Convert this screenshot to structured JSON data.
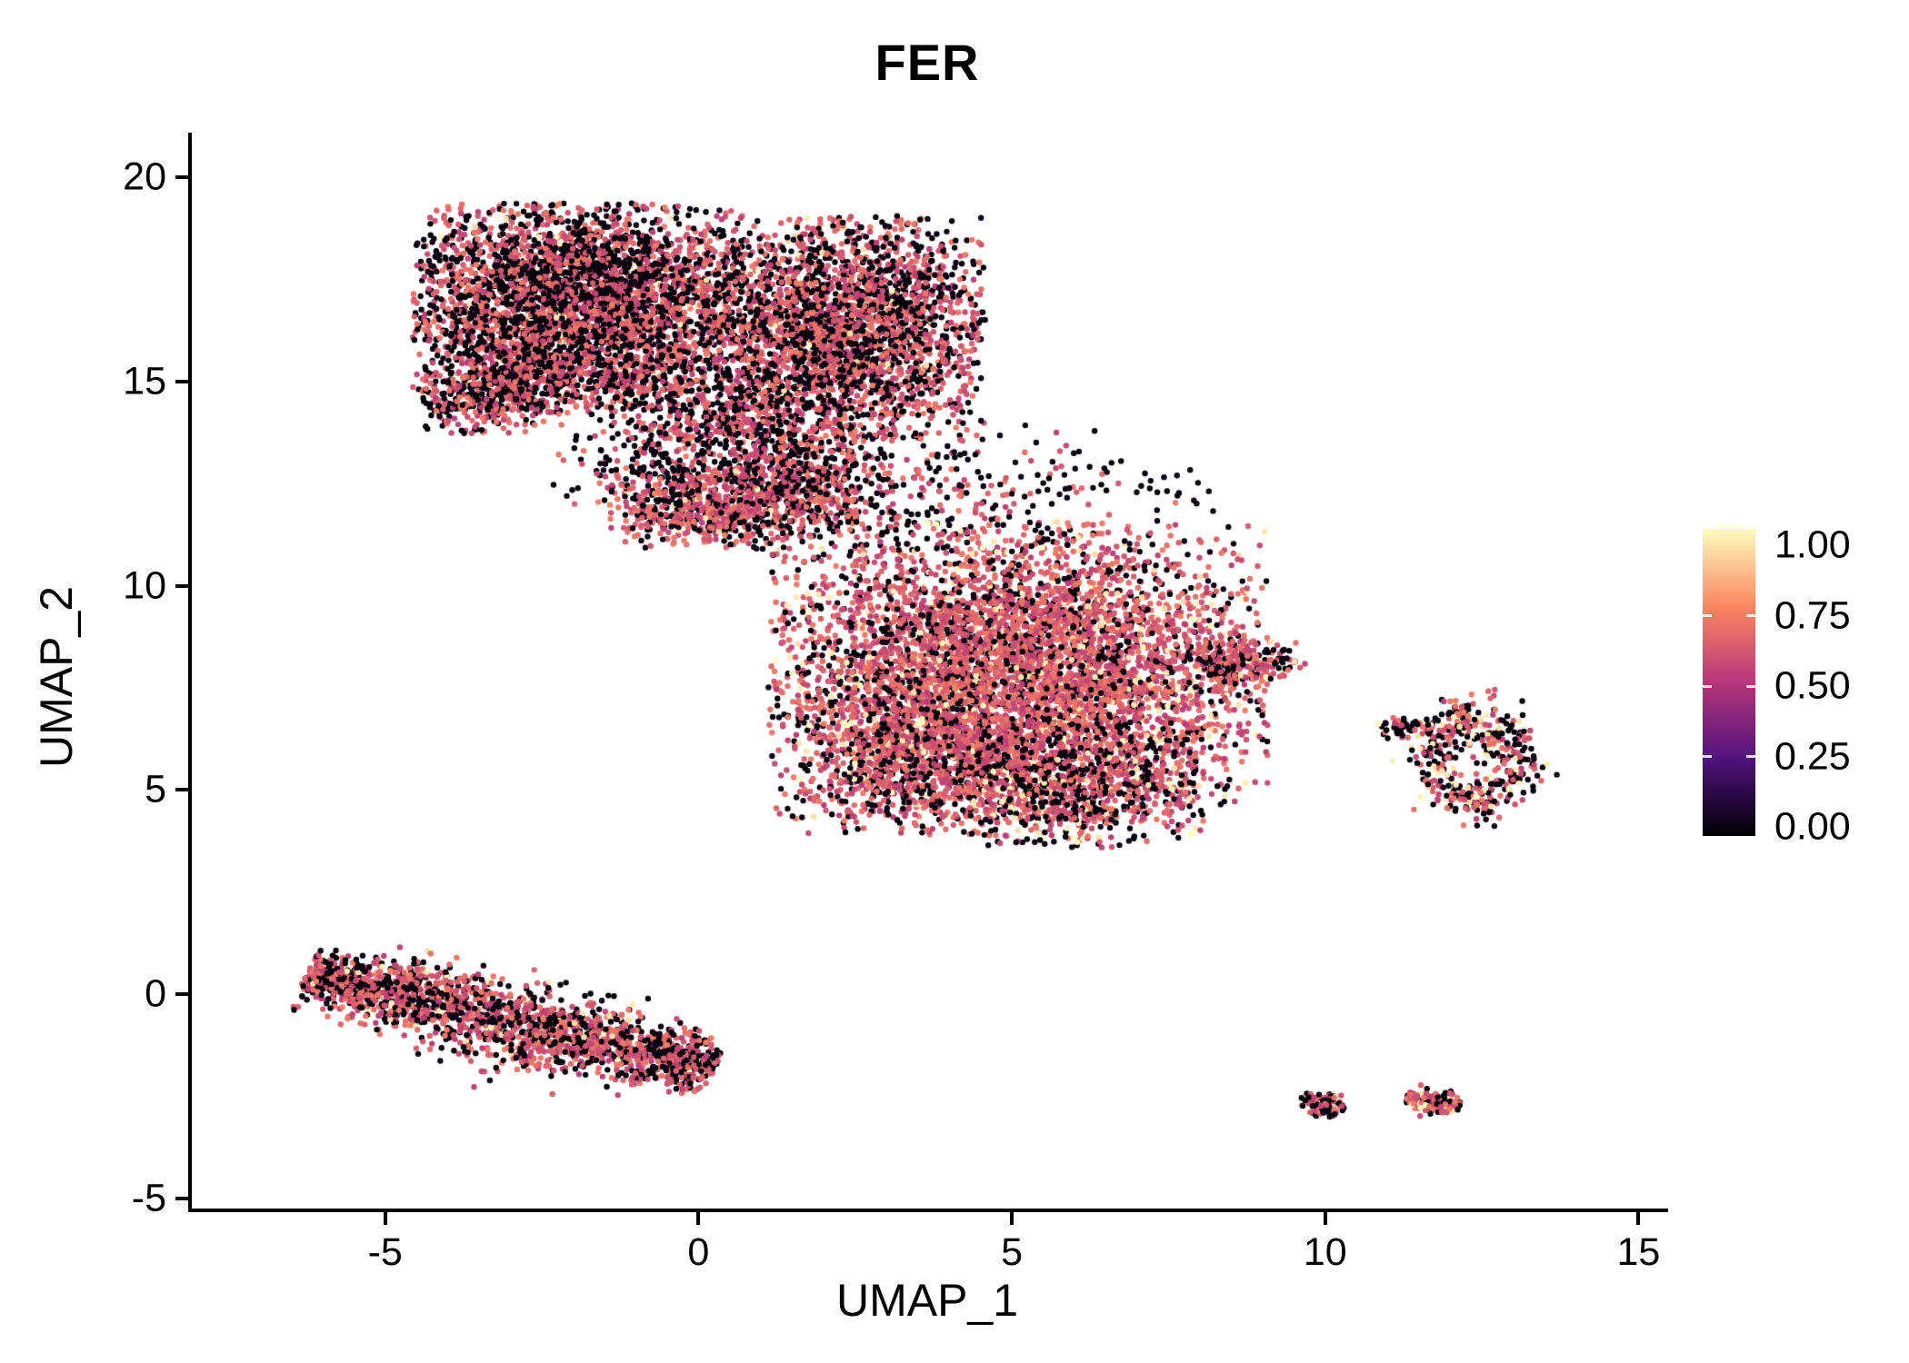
{
  "title": "FER",
  "chart_data": {
    "type": "scatter",
    "title": "FER",
    "xlabel": "UMAP_1",
    "ylabel": "UMAP_2",
    "xlim": [
      -8.1,
      15.4
    ],
    "ylim": [
      -5.25,
      21.05
    ],
    "x_ticks": [
      -5,
      0,
      5,
      10,
      15
    ],
    "x_tick_labels": [
      "-5",
      "0",
      "5",
      "10",
      "15"
    ],
    "y_ticks": [
      -5,
      0,
      5,
      10,
      15,
      20
    ],
    "y_tick_labels": [
      "-5",
      "0",
      "5",
      "10",
      "15",
      "20"
    ],
    "grid": false,
    "background": "#ffffff",
    "point_radius_px": 3.2,
    "legend": {
      "position": "right",
      "tick_values": [
        1.0,
        0.75,
        0.5,
        0.25,
        0.0
      ],
      "tick_labels": [
        "1.00",
        "0.75",
        "0.50",
        "0.25",
        "0.00"
      ],
      "colormap": "magma",
      "colormap_stops": [
        [
          0.0,
          "#000004"
        ],
        [
          0.25,
          "#51127c"
        ],
        [
          0.5,
          "#b6367a"
        ],
        [
          0.75,
          "#fb8861"
        ],
        [
          1.0,
          "#fcfdbf"
        ]
      ]
    },
    "value_classes": {
      "low": {
        "base": 0.0,
        "spread": 0.04
      },
      "mid": {
        "base": 0.52,
        "spread": 0.2
      },
      "high": {
        "base": 0.92,
        "spread": 0.08
      }
    },
    "clusters": [
      {
        "name": "top-left-lobe",
        "shape": "gaussian",
        "cx": -1.9,
        "cy": 16.8,
        "sdx": 1.4,
        "sdy": 1.35,
        "trunc": 1.9,
        "count": 3900,
        "weights": [
          0.5,
          0.485,
          0.015
        ]
      },
      {
        "name": "top-right-lobe",
        "shape": "gaussian",
        "cx": 2.3,
        "cy": 16.3,
        "sdx": 1.2,
        "sdy": 1.45,
        "trunc": 1.9,
        "count": 2700,
        "weights": [
          0.42,
          0.56,
          0.02
        ]
      },
      {
        "name": "top-lower-left-bump",
        "shape": "gaussian",
        "cx": -3.3,
        "cy": 14.7,
        "sdx": 0.62,
        "sdy": 0.55,
        "trunc": 1.8,
        "count": 380,
        "weights": [
          0.52,
          0.48,
          0.0
        ]
      },
      {
        "name": "top-chin",
        "shape": "gaussian",
        "cx": 0.3,
        "cy": 14.1,
        "sdx": 0.95,
        "sdy": 0.85,
        "trunc": 1.8,
        "count": 520,
        "weights": [
          0.5,
          0.5,
          0.0
        ]
      },
      {
        "name": "below-top-sparse",
        "shape": "gaussian",
        "cx": -0.8,
        "cy": 13.0,
        "sdx": 0.85,
        "sdy": 0.6,
        "trunc": 2.0,
        "count": 130,
        "weights": [
          0.6,
          0.4,
          0.0
        ]
      },
      {
        "name": "neck-band",
        "shape": "gaussian",
        "cx": 0.5,
        "cy": 11.9,
        "sdx": 1.05,
        "sdy": 0.5,
        "trunc": 2.0,
        "count": 750,
        "weights": [
          0.33,
          0.65,
          0.02
        ]
      },
      {
        "name": "neck-upper",
        "shape": "gaussian",
        "cx": 1.7,
        "cy": 13.0,
        "sdx": 0.75,
        "sdy": 0.8,
        "trunc": 1.9,
        "count": 380,
        "weights": [
          0.45,
          0.55,
          0.0
        ]
      },
      {
        "name": "mid-scatter",
        "shape": "gaussian",
        "cx": 3.4,
        "cy": 12.2,
        "sdx": 1.4,
        "sdy": 0.95,
        "trunc": 2.2,
        "count": 300,
        "weights": [
          0.55,
          0.45,
          0.0
        ]
      },
      {
        "name": "upper-mid-sparse",
        "shape": "gaussian",
        "cx": 6.6,
        "cy": 12.4,
        "sdx": 0.9,
        "sdy": 0.5,
        "trunc": 2.0,
        "count": 45,
        "weights": [
          0.7,
          0.3,
          0.0
        ]
      },
      {
        "name": "central-main",
        "shape": "gaussian",
        "cx": 5.1,
        "cy": 7.9,
        "sdx": 1.9,
        "sdy": 1.75,
        "trunc": 2.1,
        "count": 5400,
        "weights": [
          0.22,
          0.72,
          0.06
        ]
      },
      {
        "name": "central-lower-left",
        "shape": "gaussian",
        "cx": 3.5,
        "cy": 5.9,
        "sdx": 1.0,
        "sdy": 1.0,
        "trunc": 2.0,
        "count": 950,
        "weights": [
          0.3,
          0.65,
          0.05
        ]
      },
      {
        "name": "central-bottom",
        "shape": "gaussian",
        "cx": 6.1,
        "cy": 5.0,
        "sdx": 1.0,
        "sdy": 0.72,
        "trunc": 2.0,
        "count": 750,
        "weights": [
          0.38,
          0.52,
          0.1
        ]
      },
      {
        "name": "central-right-tip",
        "shape": "gaussian",
        "cx": 8.6,
        "cy": 8.15,
        "sdx": 0.55,
        "sdy": 0.3,
        "trunc": 2.0,
        "count": 230,
        "weights": [
          0.3,
          0.65,
          0.05
        ]
      },
      {
        "name": "right-ring",
        "shape": "ring",
        "cx": 12.35,
        "cy": 5.75,
        "rx": 0.72,
        "ry": 1.02,
        "jitter": 0.3,
        "count": 430,
        "weights": [
          0.42,
          0.45,
          0.13
        ]
      },
      {
        "name": "right-ring-speck",
        "shape": "gaussian",
        "cx": 11.25,
        "cy": 6.55,
        "sdx": 0.22,
        "sdy": 0.16,
        "trunc": 2.0,
        "count": 40,
        "weights": [
          0.55,
          0.4,
          0.05
        ]
      },
      {
        "name": "left-streak",
        "shape": "streak",
        "x1": -6.25,
        "y1": 0.5,
        "x2": 0.25,
        "y2": -1.85,
        "width": 0.38,
        "count": 2100,
        "weights": [
          0.4,
          0.565,
          0.035
        ]
      },
      {
        "name": "bottom-right-blob",
        "shape": "gaussian",
        "cx": 10.0,
        "cy": -2.72,
        "sdx": 0.2,
        "sdy": 0.15,
        "trunc": 2.0,
        "count": 140,
        "weights": [
          0.45,
          0.45,
          0.1
        ]
      },
      {
        "name": "bottom-right-dash",
        "shape": "streak",
        "x1": 11.3,
        "y1": -2.55,
        "x2": 12.15,
        "y2": -2.72,
        "width": 0.12,
        "count": 170,
        "weights": [
          0.3,
          0.6,
          0.1
        ]
      },
      {
        "name": "lone-dots",
        "shape": "gaussian",
        "cx": 5.6,
        "cy": 3.8,
        "sdx": 0.3,
        "sdy": 0.12,
        "trunc": 1.5,
        "count": 5,
        "weights": [
          1.0,
          0.0,
          0.0
        ]
      }
    ]
  }
}
